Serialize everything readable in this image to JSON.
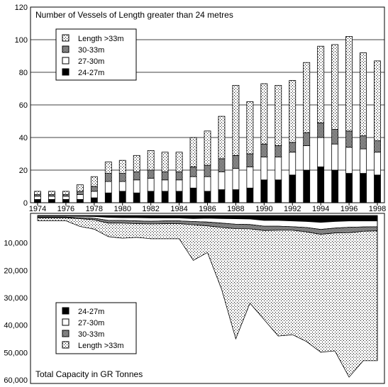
{
  "chart_data": [
    {
      "type": "bar",
      "stacked": true,
      "title": "Number of Vessels of Length greater than 24 metres",
      "categories": [
        1974,
        1975,
        1976,
        1977,
        1978,
        1979,
        1980,
        1981,
        1982,
        1983,
        1984,
        1985,
        1986,
        1987,
        1988,
        1989,
        1990,
        1991,
        1992,
        1993,
        1994,
        1995,
        1996,
        1997,
        1998
      ],
      "x_tick_labels": [
        "1974",
        "1976",
        "1978",
        "1980",
        "1982",
        "1984",
        "1986",
        "1988",
        "1990",
        "1992",
        "1994",
        "1996",
        "1998"
      ],
      "y_tick_labels": [
        "0",
        "20",
        "40",
        "60",
        "80",
        "100",
        "120"
      ],
      "ylim": [
        0,
        120
      ],
      "grid": true,
      "legend_position": "top-left",
      "series": [
        {
          "name": "24-27m",
          "values": [
            2,
            2,
            2,
            2,
            3,
            6,
            7,
            6,
            7,
            7,
            7,
            9,
            7,
            8,
            8,
            9,
            14,
            14,
            17,
            20,
            22,
            20,
            18,
            18,
            17
          ]
        },
        {
          "name": "27-30m",
          "values": [
            2,
            2,
            2,
            3,
            4,
            7,
            6,
            8,
            8,
            7,
            7,
            7,
            9,
            11,
            13,
            13,
            14,
            14,
            14,
            15,
            18,
            16,
            16,
            15,
            14
          ]
        },
        {
          "name": "30-33m",
          "values": [
            1,
            1,
            1,
            2,
            3,
            5,
            5,
            5,
            5,
            5,
            5,
            6,
            7,
            8,
            8,
            8,
            8,
            7,
            6,
            8,
            9,
            9,
            10,
            8,
            7
          ]
        },
        {
          "name": "Length >33m",
          "values": [
            2,
            2,
            2,
            4,
            6,
            7,
            8,
            10,
            12,
            12,
            12,
            18,
            21,
            26,
            43,
            32,
            37,
            37,
            38,
            43,
            47,
            52,
            58,
            51,
            49
          ]
        }
      ],
      "fill_patterns": {
        "24-27m": "solid-black",
        "27-30m": "white",
        "30-33m": "dense-dots",
        "Length >33m": "sparse-dots"
      }
    },
    {
      "type": "area",
      "stacked": true,
      "inverted_y": true,
      "title": "Total Capacity in GR Tonnes",
      "x": [
        1974,
        1975,
        1976,
        1977,
        1978,
        1979,
        1980,
        1981,
        1982,
        1983,
        1984,
        1985,
        1986,
        1987,
        1988,
        1989,
        1990,
        1991,
        1992,
        1993,
        1994,
        1995,
        1996,
        1997,
        1998
      ],
      "y_tick_labels": [
        "10,000",
        "20,000",
        "30,000",
        "40,000",
        "50,000",
        "60,000"
      ],
      "ylim": [
        0,
        60000
      ],
      "legend_position": "bottom-left",
      "series": [
        {
          "name": "24-27m",
          "values": [
            250,
            250,
            250,
            300,
            400,
            700,
            800,
            800,
            900,
            900,
            900,
            1100,
            1000,
            1100,
            1200,
            1300,
            1800,
            1800,
            2000,
            2200,
            2500,
            2200,
            2000,
            2000,
            2000
          ]
        },
        {
          "name": "27-30m",
          "values": [
            350,
            350,
            350,
            500,
            600,
            1100,
            1000,
            1200,
            1200,
            1100,
            1100,
            1100,
            1400,
            1700,
            2000,
            2000,
            2100,
            2100,
            2100,
            2200,
            2600,
            2400,
            2300,
            2200,
            2100
          ]
        },
        {
          "name": "30-33m",
          "values": [
            250,
            250,
            250,
            400,
            600,
            1000,
            1000,
            1000,
            1000,
            1000,
            1000,
            1200,
            1400,
            1600,
            1600,
            1600,
            1600,
            1500,
            1300,
            1600,
            1800,
            1800,
            2000,
            1600,
            1500
          ]
        },
        {
          "name": "Length >33m",
          "values": [
            1100,
            1100,
            1100,
            2800,
            3400,
            4900,
            5500,
            5000,
            5400,
            5500,
            5500,
            13000,
            9700,
            22600,
            40200,
            27100,
            32500,
            38600,
            38100,
            40000,
            43000,
            43000,
            52700,
            47200,
            47400
          ]
        }
      ],
      "fill_patterns": {
        "24-27m": "solid-black",
        "27-30m": "white",
        "30-33m": "dense-dots",
        "Length >33m": "sparse-dots"
      }
    }
  ]
}
